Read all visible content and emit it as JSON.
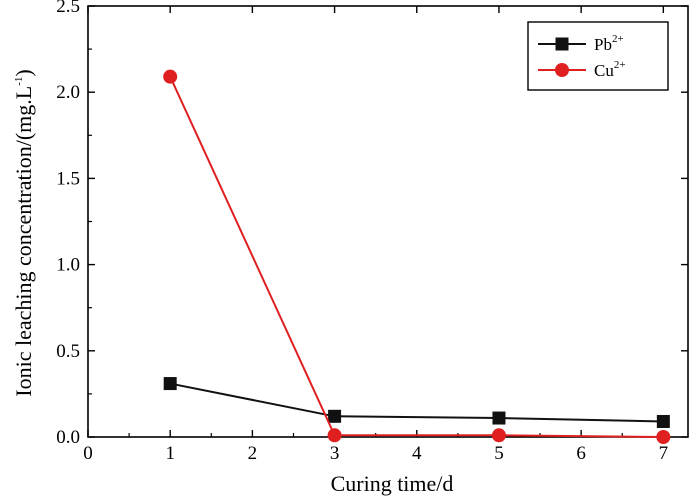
{
  "chart_data": {
    "type": "line",
    "xlabel": "Curing time/d",
    "ylabel": "Ionic leaching concentration/(mg.L",
    "ylabel_sup": "-1",
    "ylabel_close": ")",
    "xlim": [
      0,
      7.3
    ],
    "ylim": [
      0,
      2.5
    ],
    "xticks": [
      0,
      1,
      2,
      3,
      4,
      5,
      6,
      7
    ],
    "yticks": [
      0.0,
      0.5,
      1.0,
      1.5,
      2.0,
      2.5
    ],
    "xtick_labels": [
      "0",
      "1",
      "2",
      "3",
      "4",
      "5",
      "6",
      "7"
    ],
    "ytick_labels": [
      "0.0",
      "0.5",
      "1.0",
      "1.5",
      "2.0",
      "2.5"
    ],
    "grid": false,
    "legend_position": "top-right",
    "series": [
      {
        "name": "Pb",
        "name_sup": "2+",
        "marker": "square",
        "color": "#111111",
        "x": [
          1,
          3,
          5,
          7
        ],
        "y": [
          0.31,
          0.12,
          0.11,
          0.09
        ]
      },
      {
        "name": "Cu",
        "name_sup": "2+",
        "marker": "circle",
        "color": "#e02020",
        "x": [
          1,
          3,
          5,
          7
        ],
        "y": [
          2.09,
          0.01,
          0.01,
          0.0
        ]
      }
    ]
  }
}
